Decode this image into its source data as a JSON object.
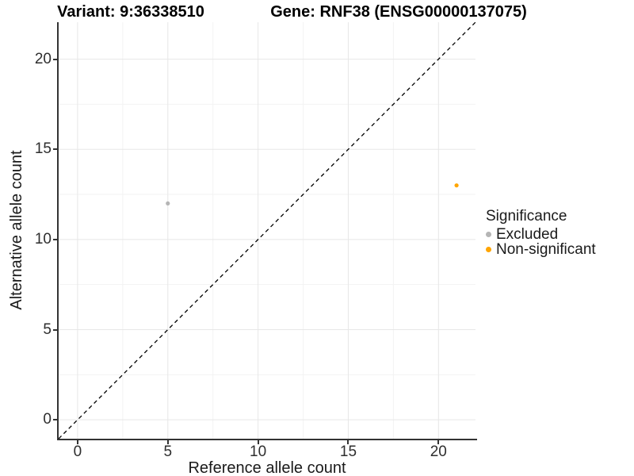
{
  "chart_data": {
    "type": "scatter",
    "titles": {
      "variant": "Variant: 9:36338510",
      "gene": "Gene: RNF38 (ENSG00000137075)"
    },
    "xlabel": "Reference allele count",
    "ylabel": "Alternative allele count",
    "xlim": [
      -1.05,
      22.05
    ],
    "ylim": [
      -1.05,
      22.05
    ],
    "x_ticks": [
      0,
      5,
      10,
      15,
      20
    ],
    "y_ticks": [
      0,
      5,
      10,
      15,
      20
    ],
    "minor_ticks_x": [
      2.5,
      7.5,
      12.5,
      17.5
    ],
    "minor_ticks_y": [
      2.5,
      7.5,
      12.5,
      17.5
    ],
    "grid": "major-and-minor",
    "identity_line": {
      "description": "y = x diagonal reference line",
      "style": "dashed",
      "color": "#000000",
      "from": [
        -1.05,
        -1.05
      ],
      "to": [
        22.05,
        22.05
      ]
    },
    "series": [
      {
        "name": "Excluded",
        "color": "#B5B5B5",
        "points": [
          {
            "x": 5,
            "y": 12
          }
        ]
      },
      {
        "name": "Non-significant",
        "color": "#FFA500",
        "points": [
          {
            "x": 21,
            "y": 13
          }
        ]
      }
    ],
    "legend": {
      "title": "Significance",
      "position": "right",
      "entries": [
        {
          "label": "Excluded",
          "color": "#B5B5B5"
        },
        {
          "label": "Non-significant",
          "color": "#FFA500"
        }
      ]
    },
    "style_colors": {
      "grid_major": "#E7E7E7",
      "grid_minor": "#F3F3F3",
      "axis_line": "#333333",
      "point_stroke": "none"
    }
  }
}
